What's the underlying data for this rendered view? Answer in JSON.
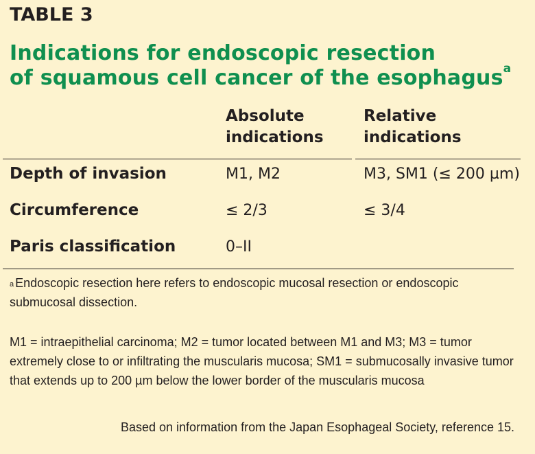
{
  "table_label": "TABLE 3",
  "title": {
    "line1": "Indications for endoscopic resection",
    "line2": "of squamous cell cancer of the esophagus",
    "superscript": "a"
  },
  "columns": [
    {
      "line1": "Absolute",
      "line2": "indications"
    },
    {
      "line1": "Relative",
      "line2": "indications"
    }
  ],
  "rows": [
    {
      "label": "Depth of invasion",
      "absolute": "M1, M2",
      "relative": "M3, SM1 (≤ 200 µm)"
    },
    {
      "label": "Circumference",
      "absolute": "≤ 2/3",
      "relative": "≤ 3/4"
    },
    {
      "label": "Paris classification",
      "absolute": "0–II",
      "relative": ""
    }
  ],
  "footnotes": {
    "a_marker": "a",
    "a_text": "Endoscopic resection here refers to endoscopic mucosal resection or endoscopic submucosal dissection.",
    "abbrev": "M1 = intraepithelial carcinoma; M2 = tumor located between M1 and M3; M3 = tumor extremely close to or infiltrating the muscularis mucosa; SM1 = submucosally invasive tumor that extends up to 200 µm below the lower border of the muscularis mucosa"
  },
  "source": "Based on information from the Japan Esophageal Society, reference 15.",
  "colors": {
    "background": "#fdf3cf",
    "title": "#0f8f4f",
    "text": "#231f20"
  }
}
